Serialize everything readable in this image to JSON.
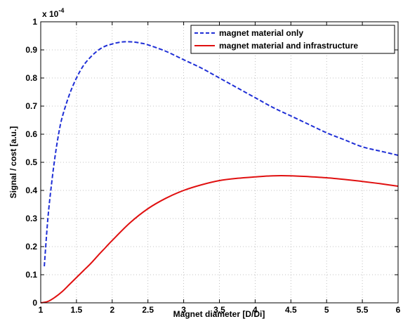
{
  "chart_data": {
    "type": "line",
    "xlabel": "Magnet diameter [D/Di]",
    "ylabel": "Signal / cost [a.u.]",
    "y_exponent_label": "x 10",
    "y_exponent_power": "-4",
    "xlim": [
      1,
      6
    ],
    "ylim": [
      0,
      1
    ],
    "xticks": [
      "1",
      "1.5",
      "2",
      "2.5",
      "3",
      "3.5",
      "4",
      "4.5",
      "5",
      "5.5",
      "6"
    ],
    "yticks": [
      "0",
      "0.1",
      "0.2",
      "0.3",
      "0.4",
      "0.5",
      "0.6",
      "0.7",
      "0.8",
      "0.9",
      "1"
    ],
    "grid": true,
    "legend_position": "top-right",
    "series": [
      {
        "name": "magnet material only",
        "color": "#1f2fd6",
        "style": "dashed",
        "x": [
          1.05,
          1.1,
          1.15,
          1.2,
          1.25,
          1.3,
          1.4,
          1.5,
          1.6,
          1.7,
          1.8,
          1.9,
          2.0,
          2.1,
          2.2,
          2.3,
          2.4,
          2.5,
          2.75,
          3.0,
          3.25,
          3.5,
          3.75,
          4.0,
          4.25,
          4.5,
          4.75,
          5.0,
          5.25,
          5.5,
          5.75,
          6.0
        ],
        "y": [
          0.13,
          0.3,
          0.42,
          0.52,
          0.6,
          0.66,
          0.74,
          0.8,
          0.845,
          0.875,
          0.898,
          0.913,
          0.921,
          0.927,
          0.929,
          0.928,
          0.924,
          0.918,
          0.895,
          0.865,
          0.835,
          0.8,
          0.765,
          0.73,
          0.695,
          0.665,
          0.635,
          0.605,
          0.58,
          0.555,
          0.54,
          0.525
        ]
      },
      {
        "name": "magnet material and infrastructure",
        "color": "#e01010",
        "style": "solid",
        "x": [
          1.0,
          1.1,
          1.2,
          1.3,
          1.4,
          1.5,
          1.6,
          1.7,
          1.8,
          1.9,
          2.0,
          2.25,
          2.5,
          2.75,
          3.0,
          3.25,
          3.5,
          3.75,
          4.0,
          4.25,
          4.5,
          4.75,
          5.0,
          5.25,
          5.5,
          5.75,
          6.0
        ],
        "y": [
          0.0,
          0.005,
          0.02,
          0.04,
          0.065,
          0.09,
          0.115,
          0.14,
          0.168,
          0.195,
          0.222,
          0.285,
          0.335,
          0.372,
          0.4,
          0.42,
          0.435,
          0.443,
          0.448,
          0.452,
          0.452,
          0.449,
          0.445,
          0.439,
          0.432,
          0.424,
          0.415
        ]
      }
    ]
  }
}
